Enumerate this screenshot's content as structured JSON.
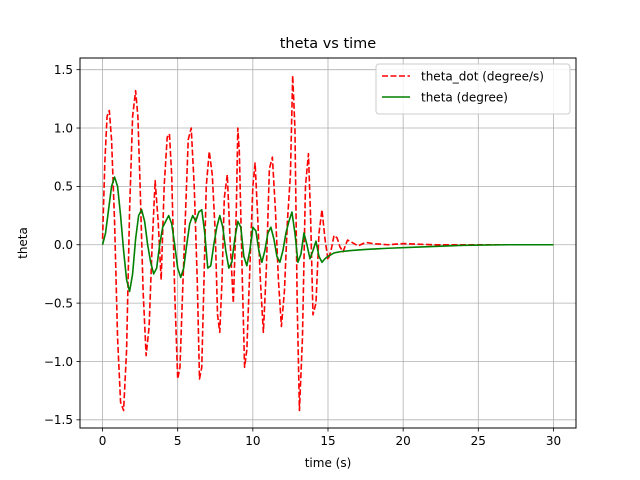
{
  "chart_data": {
    "type": "line",
    "title": "theta vs time",
    "xlabel": "time (s)",
    "ylabel": "theta",
    "xlim": [
      -1.5,
      31.5
    ],
    "ylim": [
      -1.57,
      1.6
    ],
    "xticks": [
      0,
      5,
      10,
      15,
      20,
      25,
      30
    ],
    "xtick_labels": [
      "0",
      "5",
      "10",
      "15",
      "20",
      "25",
      "30"
    ],
    "yticks": [
      -1.5,
      -1.0,
      -0.5,
      0.0,
      0.5,
      1.0,
      1.5
    ],
    "ytick_labels": [
      "−1.5",
      "−1.0",
      "−0.5",
      "0.0",
      "0.5",
      "1.0",
      "1.5"
    ],
    "grid": true,
    "legend_position": "top-right",
    "series": [
      {
        "name": "theta_dot (degree/s)",
        "color": "#ff0000",
        "style": "dashed",
        "x": [
          0.0,
          0.15,
          0.3,
          0.45,
          0.6,
          0.8,
          1.0,
          1.2,
          1.4,
          1.6,
          1.8,
          2.0,
          2.2,
          2.35,
          2.5,
          2.7,
          2.9,
          3.1,
          3.3,
          3.5,
          3.7,
          3.9,
          4.1,
          4.3,
          4.45,
          4.6,
          4.8,
          5.0,
          5.15,
          5.3,
          5.5,
          5.7,
          5.9,
          6.1,
          6.3,
          6.45,
          6.6,
          6.75,
          6.9,
          7.1,
          7.3,
          7.5,
          7.65,
          7.8,
          7.95,
          8.1,
          8.3,
          8.5,
          8.7,
          8.9,
          9.0,
          9.1,
          9.3,
          9.45,
          9.6,
          9.8,
          10.0,
          10.15,
          10.3,
          10.5,
          10.7,
          10.9,
          11.1,
          11.3,
          11.5,
          11.7,
          11.9,
          12.1,
          12.3,
          12.5,
          12.65,
          12.8,
          12.95,
          13.1,
          13.3,
          13.5,
          13.7,
          13.85,
          14.0,
          14.2,
          14.4,
          14.6,
          14.8,
          15.0,
          15.2,
          15.4,
          15.6,
          15.8,
          16.0,
          16.3,
          16.6,
          17.0,
          17.5,
          18.0,
          19.0,
          20.0,
          22.0,
          25.0,
          30.0
        ],
        "values": [
          0.05,
          0.7,
          1.1,
          1.15,
          0.9,
          0.2,
          -0.8,
          -1.35,
          -1.42,
          -0.9,
          0.3,
          1.1,
          1.32,
          1.1,
          0.5,
          -0.4,
          -0.95,
          -0.7,
          0.0,
          0.55,
          0.2,
          -0.3,
          0.5,
          0.92,
          0.95,
          0.6,
          -0.4,
          -1.15,
          -1.05,
          -0.5,
          0.2,
          0.9,
          1.0,
          0.5,
          -0.3,
          -1.15,
          -1.05,
          -0.3,
          0.5,
          0.8,
          0.6,
          0.1,
          -0.6,
          -0.75,
          -0.3,
          0.4,
          0.6,
          0.0,
          -0.5,
          0.3,
          1.0,
          0.8,
          -0.3,
          -1.05,
          -0.9,
          -0.2,
          0.5,
          0.7,
          0.3,
          -0.3,
          -0.75,
          -0.2,
          0.65,
          0.75,
          0.3,
          -0.3,
          -0.7,
          -0.4,
          0.2,
          0.6,
          1.45,
          1.0,
          -0.5,
          -1.42,
          -0.8,
          0.5,
          0.78,
          0.2,
          -0.6,
          -0.5,
          0.1,
          0.3,
          0.05,
          -0.13,
          -0.05,
          0.08,
          0.06,
          -0.02,
          -0.06,
          0.04,
          0.02,
          -0.01,
          0.02,
          0.01,
          0.0,
          0.01,
          0.0,
          0.0,
          0.0
        ]
      },
      {
        "name": "theta (degree)",
        "color": "#008000",
        "style": "solid",
        "x": [
          0.0,
          0.2,
          0.4,
          0.6,
          0.8,
          1.0,
          1.2,
          1.4,
          1.6,
          1.8,
          2.0,
          2.2,
          2.4,
          2.6,
          2.8,
          3.0,
          3.2,
          3.4,
          3.6,
          3.8,
          4.0,
          4.2,
          4.4,
          4.6,
          4.8,
          5.0,
          5.2,
          5.4,
          5.6,
          5.8,
          6.0,
          6.2,
          6.4,
          6.6,
          6.8,
          7.0,
          7.2,
          7.4,
          7.6,
          7.8,
          8.0,
          8.2,
          8.4,
          8.6,
          8.8,
          9.0,
          9.2,
          9.4,
          9.6,
          9.8,
          10.0,
          10.2,
          10.4,
          10.6,
          10.8,
          11.0,
          11.2,
          11.4,
          11.6,
          11.8,
          12.0,
          12.2,
          12.4,
          12.6,
          12.8,
          13.0,
          13.2,
          13.4,
          13.6,
          13.8,
          14.0,
          14.2,
          14.4,
          14.6,
          14.8,
          15.0,
          15.4,
          15.8,
          16.5,
          17.5,
          19.0,
          21.0,
          24.0,
          27.0,
          30.0
        ],
        "values": [
          0.0,
          0.1,
          0.3,
          0.5,
          0.58,
          0.5,
          0.25,
          -0.05,
          -0.3,
          -0.4,
          -0.25,
          0.05,
          0.25,
          0.3,
          0.2,
          0.0,
          -0.15,
          -0.25,
          -0.2,
          0.0,
          0.15,
          0.2,
          0.25,
          0.18,
          0.0,
          -0.2,
          -0.28,
          -0.2,
          0.0,
          0.18,
          0.25,
          0.2,
          0.28,
          0.3,
          0.1,
          -0.2,
          -0.18,
          0.0,
          0.15,
          0.25,
          0.15,
          -0.05,
          -0.2,
          -0.15,
          0.05,
          0.2,
          0.15,
          -0.1,
          -0.18,
          -0.05,
          0.15,
          0.12,
          -0.05,
          -0.15,
          -0.05,
          0.1,
          0.15,
          0.05,
          -0.1,
          -0.15,
          -0.05,
          0.1,
          0.2,
          0.28,
          0.1,
          -0.15,
          -0.08,
          0.1,
          0.0,
          -0.12,
          -0.05,
          0.03,
          -0.1,
          -0.15,
          -0.12,
          -0.1,
          -0.07,
          -0.06,
          -0.05,
          -0.04,
          -0.03,
          -0.02,
          -0.005,
          0.0,
          0.0
        ]
      }
    ]
  }
}
